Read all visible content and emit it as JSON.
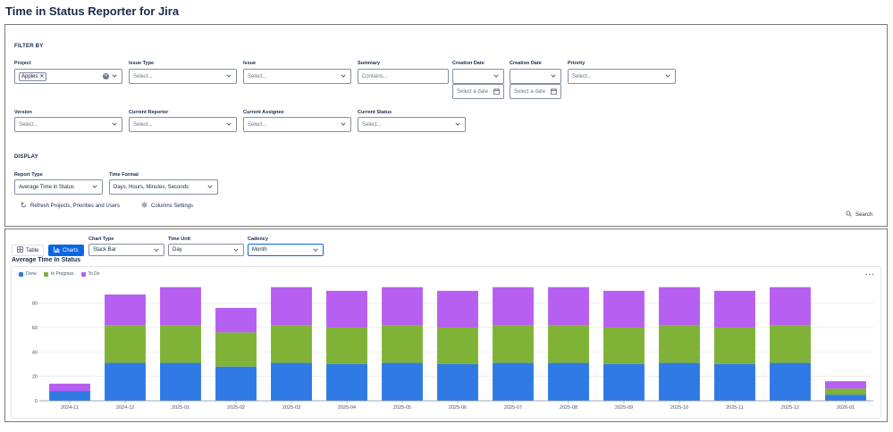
{
  "app": {
    "title": "Time in Status Reporter for Jira"
  },
  "filter": {
    "section_title": "FILTER BY",
    "fields": [
      {
        "label": "Project",
        "chip": "Apples",
        "placeholder": ""
      },
      {
        "label": "Issue Type",
        "placeholder": "Select..."
      },
      {
        "label": "Issue",
        "placeholder": "Select..."
      },
      {
        "label": "Summary",
        "placeholder": "Contains..."
      },
      {
        "label": "Creation Date",
        "placeholder": "",
        "date_placeholder": "Select a date"
      },
      {
        "label": "Creation Date",
        "placeholder": "",
        "date_placeholder": "Select a date"
      },
      {
        "label": "Priority",
        "placeholder": "Select..."
      },
      {
        "label": "Version",
        "placeholder": "Select..."
      },
      {
        "label": "Current Reporter",
        "placeholder": "Select..."
      },
      {
        "label": "Current Assignee",
        "placeholder": "Select..."
      },
      {
        "label": "Current Status",
        "placeholder": "Select..."
      }
    ]
  },
  "display": {
    "section_title": "DISPLAY",
    "report_type": {
      "label": "Report Type",
      "value": "Average Time in Status"
    },
    "time_format": {
      "label": "Time Format",
      "value": "Days, Hours, Minutes, Seconds"
    },
    "refresh_label": "Refresh Projects, Priorities and Users",
    "columns_label": "Columns Settings",
    "search_label": "Search"
  },
  "view": {
    "table_label": "Table",
    "charts_label": "Charts",
    "chart_type": {
      "label": "Chart Type",
      "value": "Stack Bar"
    },
    "time_unit": {
      "label": "Time Unit",
      "value": "Day"
    },
    "cadency": {
      "label": "Cadency",
      "value": "Month"
    }
  },
  "chart_data": {
    "type": "bar",
    "stacked": true,
    "title": "Average Time In Status",
    "legend_position": "top-left",
    "grid": true,
    "categories": [
      "2024-11",
      "2024-12",
      "2025-01",
      "2025-02",
      "2025-03",
      "2025-04",
      "2025-05",
      "2025-06",
      "2025-07",
      "2025-08",
      "2025-09",
      "2025-10",
      "2025-11",
      "2025-12",
      "2026-01"
    ],
    "series": [
      {
        "name": "Done",
        "color": "#2f7ae5",
        "values": [
          8,
          31,
          31,
          28,
          31,
          30,
          31,
          30,
          31,
          31,
          30,
          31,
          30,
          31,
          5
        ]
      },
      {
        "name": "In Progress",
        "color": "#7fb236",
        "values": [
          0,
          31,
          31,
          28,
          31,
          30,
          31,
          30,
          31,
          31,
          30,
          31,
          30,
          31,
          5
        ]
      },
      {
        "name": "To Do",
        "color": "#b65ff0",
        "values": [
          6,
          25,
          31,
          20,
          31,
          30,
          31,
          30,
          31,
          31,
          30,
          31,
          30,
          31,
          6
        ]
      }
    ],
    "yticks": [
      0,
      20,
      40,
      60,
      80
    ],
    "ylim": [
      0,
      95
    ]
  }
}
